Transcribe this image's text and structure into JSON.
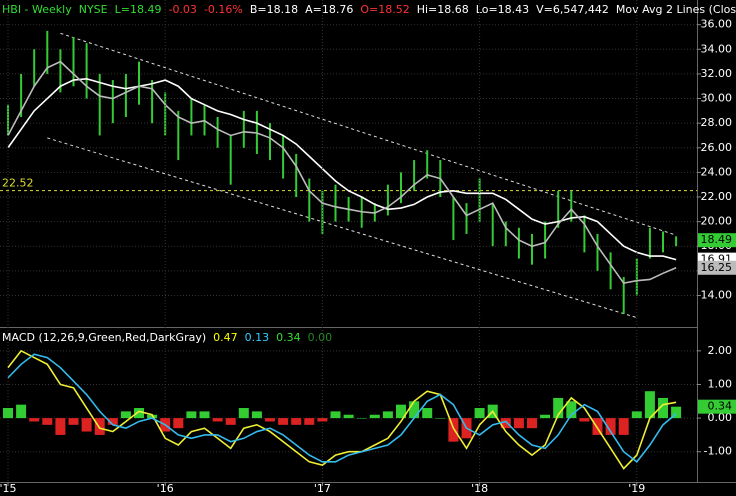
{
  "chart_data": [
    {
      "type": "range-bar",
      "header": [
        {
          "text": "HBI - Weekly",
          "color": "#33dd33"
        },
        {
          "text": "NYSE",
          "color": "#33dd33"
        },
        {
          "text": "L=18.49",
          "color": "#33dd33"
        },
        {
          "text": "-0.03",
          "color": "#ff3333"
        },
        {
          "text": "-0.16%",
          "color": "#ff3333"
        },
        {
          "text": "B=18.18",
          "color": "#ffffff"
        },
        {
          "text": "A=18.76",
          "color": "#ffffff"
        },
        {
          "text": "O=18.52",
          "color": "#ff3333"
        },
        {
          "text": "Hi=18.68",
          "color": "#ffffff"
        },
        {
          "text": "Lo=18.43",
          "color": "#ffffff"
        },
        {
          "text": "V=6,547,442",
          "color": "#ffffff"
        },
        {
          "text": "Mov Avg 2 Lines (Close,20,40,0)",
          "color": "#ffffff"
        }
      ],
      "color": "#33cc33",
      "high": [
        29.5,
        32,
        34,
        35.5,
        34,
        35,
        34.5,
        32,
        31.5,
        32,
        33,
        31.5,
        30.5,
        29,
        30,
        29.5,
        28.5,
        27,
        29,
        29,
        28,
        27,
        25.5,
        23.5,
        22.5,
        23,
        22,
        22,
        21.5,
        23,
        24,
        25,
        25.8,
        25,
        22,
        21.5,
        23.5,
        21.5,
        20,
        19.5,
        19,
        20,
        22.5,
        22.5,
        20.5,
        19,
        17.5,
        15.5,
        17,
        19.5,
        19.2,
        18.8
      ],
      "low": [
        27,
        28.5,
        31,
        32,
        30.5,
        31,
        30,
        27,
        28,
        28.5,
        29.5,
        28,
        27,
        25,
        27,
        27,
        26,
        23,
        26,
        25.5,
        25,
        23.5,
        22,
        20,
        19,
        20,
        20,
        19.5,
        20,
        20.5,
        21.5,
        22.5,
        23.5,
        22,
        18.5,
        19,
        20,
        18,
        18,
        17,
        16.5,
        17,
        19.5,
        20,
        17.5,
        16,
        14.5,
        12.5,
        14,
        17,
        17.5,
        18
      ],
      "last": 18.49,
      "series": [
        {
          "name": "40",
          "color": "#ffffff",
          "values": [
            26,
            27.5,
            29,
            30,
            31,
            31.5,
            31.6,
            31.3,
            31,
            30.8,
            31,
            31.2,
            31.5,
            31,
            30,
            29.5,
            29,
            28.7,
            28.3,
            28,
            27.5,
            27,
            26.3,
            25.3,
            24.3,
            23.3,
            22.5,
            22,
            21.4,
            21,
            21.1,
            21.4,
            22,
            22.4,
            22.5,
            22.3,
            22.3,
            22.3,
            21.8,
            21,
            20.2,
            19.8,
            20,
            20.3,
            20.4,
            20,
            19,
            18,
            17.5,
            17.2,
            17.2,
            16.91
          ]
        },
        {
          "name": "20",
          "color": "#bbbbbb",
          "values": [
            27,
            29,
            31,
            32.5,
            33,
            32,
            31,
            30.2,
            30,
            30.5,
            31,
            30.8,
            29.5,
            28.5,
            28,
            28.2,
            27.5,
            27,
            27.3,
            27.2,
            26.8,
            26,
            24.5,
            22.5,
            21.5,
            21.2,
            21,
            20.8,
            20.7,
            21.2,
            22,
            23,
            23.8,
            23.5,
            22,
            20.5,
            21,
            21.5,
            19.5,
            18.5,
            18,
            18.3,
            19.8,
            21,
            19.8,
            18,
            16.5,
            15,
            15.2,
            15.3,
            15.8,
            16.25
          ]
        }
      ],
      "hline": 22.52,
      "hline_color": "#dddd33",
      "trendlines": [
        {
          "x": [
            4,
            51
          ],
          "values": [
            35.3,
            18.9
          ]
        },
        {
          "x": [
            3,
            48
          ],
          "values": [
            26.8,
            12.2
          ]
        }
      ],
      "ylim": [
        11.6,
        37.6
      ],
      "yticks": [
        {
          "value": 14,
          "label": "14.00"
        },
        {
          "value": 16,
          "label": "16.00"
        },
        {
          "value": 18,
          "label": "18.00"
        },
        {
          "value": 20,
          "label": "20.00"
        },
        {
          "value": 22,
          "label": "22.00"
        },
        {
          "value": 24,
          "label": "24.00"
        },
        {
          "value": 26,
          "label": "26.00"
        },
        {
          "value": 28,
          "label": "28.00"
        },
        {
          "value": 30,
          "label": "30.00"
        },
        {
          "value": 32,
          "label": "32.00"
        },
        {
          "value": 34,
          "label": "34.00"
        },
        {
          "value": 36,
          "label": "36.00"
        }
      ],
      "grid": true
    },
    {
      "type": "macd",
      "header": [
        {
          "text": "MACD (12,26,9,Green,Red,DarkGray)",
          "color": "#ffffff"
        },
        {
          "text": "0.47",
          "color": "#ffff00"
        },
        {
          "text": "0.13",
          "color": "#33ccff"
        },
        {
          "text": "0.34",
          "color": "#33dd33"
        },
        {
          "text": "0.00",
          "color": "#228822"
        }
      ],
      "categories": [
        "'15",
        null,
        null,
        null,
        null,
        null,
        null,
        null,
        null,
        null,
        null,
        null,
        "'16",
        null,
        null,
        null,
        null,
        null,
        null,
        null,
        null,
        null,
        null,
        null,
        "'17",
        null,
        null,
        null,
        null,
        null,
        null,
        null,
        null,
        null,
        null,
        null,
        "'18",
        null,
        null,
        null,
        null,
        null,
        null,
        null,
        null,
        null,
        null,
        null,
        "'19",
        null,
        null,
        null
      ],
      "series": [
        {
          "name": "MACD",
          "color": "#eeee33",
          "values": [
            1.5,
            2.0,
            1.8,
            1.6,
            1.0,
            0.9,
            0.3,
            -0.3,
            -0.4,
            -0.1,
            0.2,
            0.1,
            -0.6,
            -0.8,
            -0.4,
            -0.3,
            -0.6,
            -0.9,
            -0.3,
            -0.2,
            -0.4,
            -0.7,
            -1.0,
            -1.3,
            -1.4,
            -1.1,
            -1.0,
            -1.0,
            -0.8,
            -0.6,
            -0.1,
            0.5,
            0.8,
            0.7,
            -0.3,
            -0.9,
            -0.2,
            0.2,
            -0.4,
            -0.8,
            -1.1,
            -0.8,
            0.1,
            0.6,
            0.3,
            -0.3,
            -0.9,
            -1.5,
            -1.1,
            0.0,
            0.4,
            0.47
          ]
        },
        {
          "name": "Signal",
          "color": "#33bbee",
          "values": [
            1.2,
            1.6,
            1.9,
            1.8,
            1.5,
            1.1,
            0.7,
            0.2,
            -0.2,
            -0.3,
            -0.1,
            0.0,
            -0.2,
            -0.5,
            -0.6,
            -0.5,
            -0.5,
            -0.7,
            -0.6,
            -0.4,
            -0.3,
            -0.5,
            -0.8,
            -1.1,
            -1.3,
            -1.3,
            -1.1,
            -1.0,
            -0.9,
            -0.8,
            -0.5,
            0.0,
            0.5,
            0.7,
            0.4,
            -0.3,
            -0.5,
            -0.2,
            -0.1,
            -0.5,
            -0.8,
            -0.9,
            -0.5,
            0.1,
            0.4,
            0.2,
            -0.4,
            -1.0,
            -1.3,
            -0.8,
            -0.2,
            0.13
          ]
        }
      ],
      "histogram": [
        0.3,
        0.4,
        -0.1,
        -0.2,
        -0.5,
        -0.2,
        -0.4,
        -0.5,
        -0.2,
        0.2,
        0.3,
        0.1,
        -0.4,
        -0.3,
        0.2,
        0.2,
        -0.1,
        -0.2,
        0.3,
        0.2,
        -0.1,
        -0.2,
        -0.2,
        -0.2,
        -0.1,
        0.2,
        0.1,
        0.0,
        0.1,
        0.2,
        0.4,
        0.5,
        0.3,
        0.0,
        -0.7,
        -0.6,
        0.3,
        0.4,
        -0.3,
        -0.3,
        -0.3,
        0.1,
        0.6,
        0.5,
        -0.1,
        -0.5,
        -0.5,
        -0.5,
        0.2,
        0.8,
        0.6,
        0.34
      ],
      "up_color": "#33cc33",
      "down_color": "#dd2222",
      "ylim": [
        -1.9,
        2.62
      ],
      "yticks": [
        {
          "value": -1,
          "label": "-1.00"
        },
        {
          "value": 0,
          "label": "0.00"
        },
        {
          "value": 1,
          "label": "1.00"
        },
        {
          "value": 2,
          "label": "2.00"
        }
      ],
      "grid": true
    }
  ]
}
